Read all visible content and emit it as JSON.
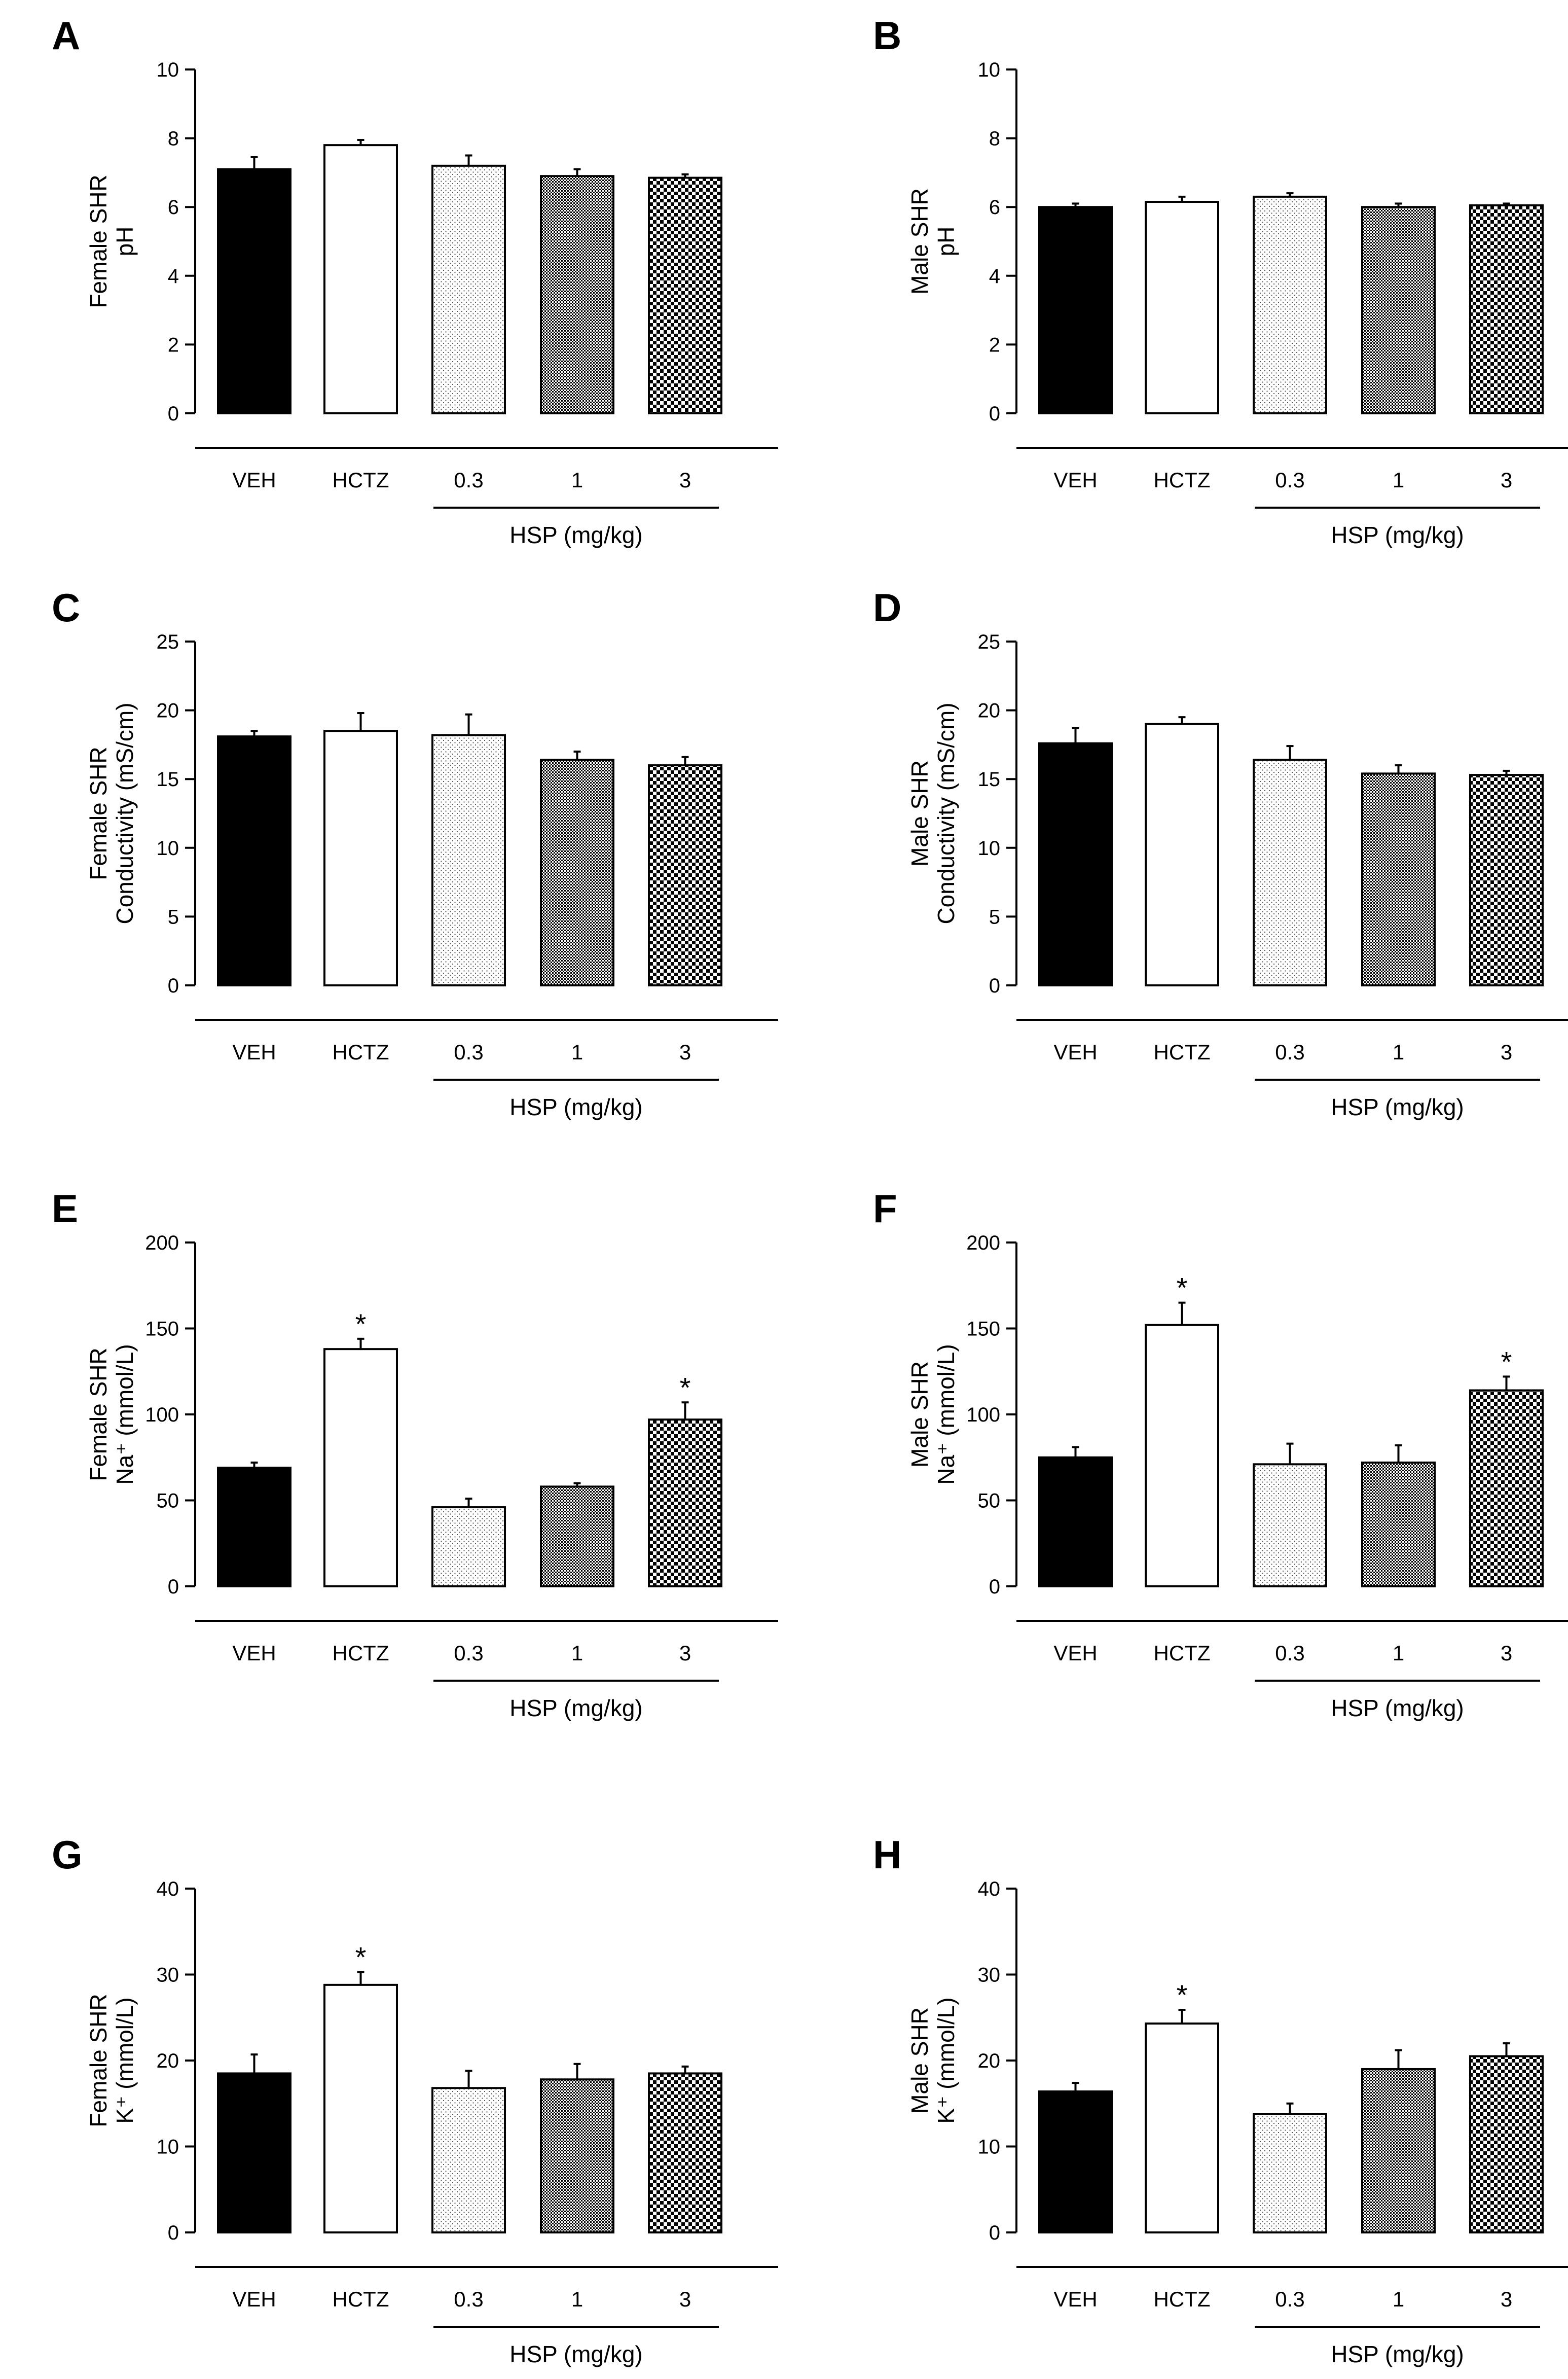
{
  "chart_data": [
    {
      "panel": "A",
      "type": "bar",
      "categories": [
        "VEH",
        "HCTZ",
        "0.3",
        "1",
        "3"
      ],
      "group_label": "HSP (mg/kg)",
      "ylabel_lines": [
        "Female SHR",
        "pH"
      ],
      "yticks": [
        "0",
        "2",
        "4",
        "6",
        "8",
        "10"
      ],
      "ylim": [
        0,
        10
      ],
      "values": [
        7.1,
        7.8,
        7.2,
        6.9,
        6.85
      ],
      "errors": [
        0.35,
        0.15,
        0.3,
        0.2,
        0.1
      ],
      "significance": [
        "",
        "",
        "",
        "",
        ""
      ]
    },
    {
      "panel": "B",
      "type": "bar",
      "categories": [
        "VEH",
        "HCTZ",
        "0.3",
        "1",
        "3"
      ],
      "group_label": "HSP (mg/kg)",
      "ylabel_lines": [
        "Male SHR",
        "pH"
      ],
      "yticks": [
        "0",
        "2",
        "4",
        "6",
        "8",
        "10"
      ],
      "ylim": [
        0,
        10
      ],
      "values": [
        6.0,
        6.15,
        6.3,
        6.0,
        6.05
      ],
      "errors": [
        0.1,
        0.15,
        0.1,
        0.1,
        0.05
      ],
      "significance": [
        "",
        "",
        "",
        "",
        ""
      ]
    },
    {
      "panel": "C",
      "type": "bar",
      "categories": [
        "VEH",
        "HCTZ",
        "0.3",
        "1",
        "3"
      ],
      "group_label": "HSP (mg/kg)",
      "ylabel_lines": [
        "Female SHR",
        "Conductivity (mS/cm)"
      ],
      "yticks": [
        "0",
        "5",
        "10",
        "15",
        "20",
        "25"
      ],
      "ylim": [
        0,
        25
      ],
      "values": [
        18.1,
        18.5,
        18.2,
        16.4,
        16.0
      ],
      "errors": [
        0.4,
        1.3,
        1.5,
        0.6,
        0.6
      ],
      "significance": [
        "",
        "",
        "",
        "",
        ""
      ]
    },
    {
      "panel": "D",
      "type": "bar",
      "categories": [
        "VEH",
        "HCTZ",
        "0.3",
        "1",
        "3"
      ],
      "group_label": "HSP (mg/kg)",
      "ylabel_lines": [
        "Male SHR",
        "Conductivity (mS/cm)"
      ],
      "yticks": [
        "0",
        "5",
        "10",
        "15",
        "20",
        "25"
      ],
      "ylim": [
        0,
        25
      ],
      "values": [
        17.6,
        19.0,
        16.4,
        15.4,
        15.3
      ],
      "errors": [
        1.1,
        0.5,
        1.0,
        0.6,
        0.3
      ],
      "significance": [
        "",
        "",
        "",
        "",
        ""
      ]
    },
    {
      "panel": "E",
      "type": "bar",
      "categories": [
        "VEH",
        "HCTZ",
        "0.3",
        "1",
        "3"
      ],
      "group_label": "HSP (mg/kg)",
      "ylabel_lines": [
        "Female SHR",
        "Na⁺ (mmol/L)"
      ],
      "yticks": [
        "0",
        "50",
        "100",
        "150",
        "200"
      ],
      "ylim": [
        0,
        200
      ],
      "values": [
        69,
        138,
        46,
        58,
        97
      ],
      "errors": [
        3,
        6,
        5,
        2,
        10
      ],
      "significance": [
        "",
        "*",
        "",
        "",
        "*"
      ]
    },
    {
      "panel": "F",
      "type": "bar",
      "categories": [
        "VEH",
        "HCTZ",
        "0.3",
        "1",
        "3"
      ],
      "group_label": "HSP (mg/kg)",
      "ylabel_lines": [
        "Male SHR",
        "Na⁺ (mmol/L)"
      ],
      "yticks": [
        "0",
        "50",
        "100",
        "150",
        "200"
      ],
      "ylim": [
        0,
        200
      ],
      "values": [
        75,
        152,
        71,
        72,
        114
      ],
      "errors": [
        6,
        13,
        12,
        10,
        8
      ],
      "significance": [
        "",
        "*",
        "",
        "",
        "*"
      ]
    },
    {
      "panel": "G",
      "type": "bar",
      "categories": [
        "VEH",
        "HCTZ",
        "0.3",
        "1",
        "3"
      ],
      "group_label": "HSP (mg/kg)",
      "ylabel_lines": [
        "Female SHR",
        "K⁺ (mmol/L)"
      ],
      "yticks": [
        "0",
        "10",
        "20",
        "30",
        "40"
      ],
      "ylim": [
        0,
        40
      ],
      "values": [
        18.5,
        28.8,
        16.8,
        17.8,
        18.5
      ],
      "errors": [
        2.2,
        1.5,
        2.0,
        1.8,
        0.8
      ],
      "significance": [
        "",
        "*",
        "",
        "",
        ""
      ]
    },
    {
      "panel": "H",
      "type": "bar",
      "categories": [
        "VEH",
        "HCTZ",
        "0.3",
        "1",
        "3"
      ],
      "group_label": "HSP (mg/kg)",
      "ylabel_lines": [
        "Male SHR",
        "K⁺ (mmol/L)"
      ],
      "yticks": [
        "0",
        "10",
        "20",
        "30",
        "40"
      ],
      "ylim": [
        0,
        40
      ],
      "values": [
        16.4,
        24.3,
        13.8,
        19.0,
        20.5
      ],
      "errors": [
        1.0,
        1.6,
        1.2,
        2.2,
        1.5
      ],
      "significance": [
        "",
        "*",
        "",
        "",
        ""
      ]
    }
  ]
}
